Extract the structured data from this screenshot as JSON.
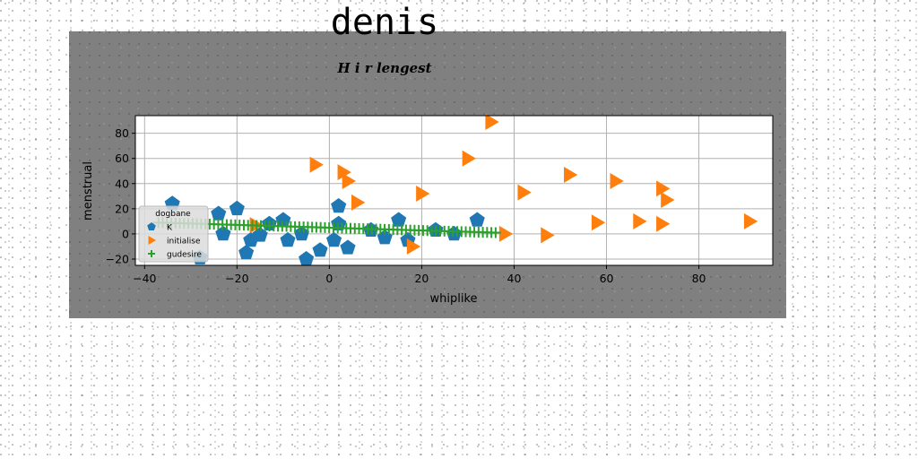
{
  "figure": {
    "title": "denis",
    "subtitle": "H i r lengest"
  },
  "chart_data": {
    "type": "scatter",
    "title": "H i r lengest",
    "xlabel": "whiplike",
    "ylabel": "menstrual",
    "xlim": [
      -42,
      96
    ],
    "ylim": [
      -25,
      94
    ],
    "xticks": [
      -40,
      -20,
      0,
      20,
      40,
      60,
      80
    ],
    "yticks": [
      -20,
      0,
      20,
      40,
      60,
      80
    ],
    "grid": true,
    "legend": {
      "title": "dogbane",
      "position": "lower-left"
    },
    "series": [
      {
        "name": "K",
        "marker": "pentagon",
        "color": "#1f77b4",
        "points": [
          [
            -34,
            24
          ],
          [
            -28,
            -19
          ],
          [
            -24,
            16
          ],
          [
            -23,
            0
          ],
          [
            -20,
            20
          ],
          [
            -18,
            -15
          ],
          [
            -17,
            -5
          ],
          [
            -15,
            -1
          ],
          [
            -13,
            8
          ],
          [
            -10,
            11
          ],
          [
            -9,
            -5
          ],
          [
            -6,
            0
          ],
          [
            -5,
            -20
          ],
          [
            -2,
            -13
          ],
          [
            1,
            -5
          ],
          [
            2,
            8
          ],
          [
            2,
            22
          ],
          [
            4,
            -11
          ],
          [
            9,
            3
          ],
          [
            12,
            -3
          ],
          [
            15,
            11
          ],
          [
            17,
            -5
          ],
          [
            23,
            3
          ],
          [
            27,
            0
          ],
          [
            32,
            11
          ]
        ]
      },
      {
        "name": "initialise",
        "marker": "triangle-right",
        "color": "#ff7f0e",
        "points": [
          [
            -16,
            7
          ],
          [
            -3,
            55
          ],
          [
            3,
            49
          ],
          [
            4,
            42
          ],
          [
            6,
            25
          ],
          [
            18,
            -10
          ],
          [
            20,
            32
          ],
          [
            30,
            60
          ],
          [
            35,
            89
          ],
          [
            38,
            0
          ],
          [
            42,
            33
          ],
          [
            47,
            -1
          ],
          [
            52,
            47
          ],
          [
            58,
            9
          ],
          [
            62,
            42
          ],
          [
            67,
            10
          ],
          [
            72,
            36
          ],
          [
            72,
            8
          ],
          [
            73,
            27
          ],
          [
            91,
            10
          ]
        ]
      },
      {
        "name": "gudesire",
        "marker": "plus",
        "color": "#2ca02c",
        "line": {
          "x_start": -37,
          "x_end": 36,
          "y_start": 9,
          "y_end": 1,
          "count": 80
        }
      }
    ]
  }
}
